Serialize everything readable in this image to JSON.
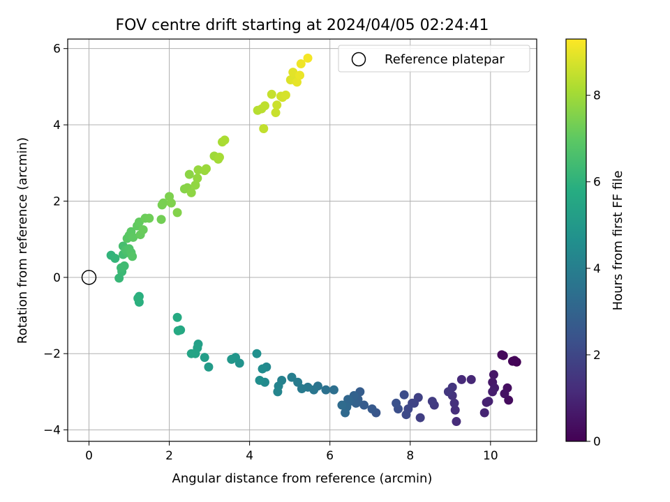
{
  "chart_data": {
    "type": "scatter",
    "title": "FOV centre drift starting at 2024/04/05 02:24:41",
    "xlabel": "Angular distance from reference (arcmin)",
    "ylabel": "Rotation from reference (arcmin)",
    "xlim": [
      -0.53,
      11.15
    ],
    "ylim": [
      -4.3,
      6.25
    ],
    "xticks": [
      0,
      2,
      4,
      6,
      8,
      10
    ],
    "yticks": [
      -4,
      -2,
      0,
      2,
      4,
      6
    ],
    "grid": true,
    "legend": {
      "placement": "top-right",
      "entries": [
        "Reference platepar"
      ]
    },
    "colorbar": {
      "label": "Hours from first FF file",
      "colormap": "viridis",
      "range": [
        0,
        9.3
      ],
      "ticks": [
        0,
        2,
        4,
        6,
        8
      ]
    },
    "reference_point": {
      "x": 0,
      "y": 0,
      "label": "Reference platepar"
    },
    "points": [
      {
        "x": 10.65,
        "y": -2.22,
        "c": 0.02
      },
      {
        "x": 10.55,
        "y": -2.2,
        "c": 0.08
      },
      {
        "x": 10.6,
        "y": -2.18,
        "c": 0.12
      },
      {
        "x": 10.32,
        "y": -2.05,
        "c": 0.18
      },
      {
        "x": 10.28,
        "y": -2.03,
        "c": 0.22
      },
      {
        "x": 10.45,
        "y": -3.22,
        "c": 0.3
      },
      {
        "x": 10.42,
        "y": -2.9,
        "c": 0.38
      },
      {
        "x": 10.35,
        "y": -3.05,
        "c": 0.45
      },
      {
        "x": 10.08,
        "y": -2.55,
        "c": 0.55
      },
      {
        "x": 10.05,
        "y": -2.75,
        "c": 0.62
      },
      {
        "x": 10.1,
        "y": -2.9,
        "c": 0.7
      },
      {
        "x": 10.05,
        "y": -3.0,
        "c": 0.78
      },
      {
        "x": 9.9,
        "y": -3.28,
        "c": 0.85
      },
      {
        "x": 9.95,
        "y": -3.25,
        "c": 0.9
      },
      {
        "x": 9.85,
        "y": -3.55,
        "c": 0.95
      },
      {
        "x": 9.52,
        "y": -2.68,
        "c": 1.05
      },
      {
        "x": 9.28,
        "y": -2.68,
        "c": 1.12
      },
      {
        "x": 9.15,
        "y": -3.78,
        "c": 1.18
      },
      {
        "x": 9.12,
        "y": -3.48,
        "c": 1.25
      },
      {
        "x": 9.1,
        "y": -3.3,
        "c": 1.32
      },
      {
        "x": 9.05,
        "y": -3.1,
        "c": 1.4
      },
      {
        "x": 9.05,
        "y": -2.88,
        "c": 1.46
      },
      {
        "x": 8.95,
        "y": -3.0,
        "c": 1.52
      },
      {
        "x": 8.6,
        "y": -3.35,
        "c": 1.6
      },
      {
        "x": 8.55,
        "y": -3.25,
        "c": 1.68
      },
      {
        "x": 8.25,
        "y": -3.68,
        "c": 1.75
      },
      {
        "x": 8.2,
        "y": -3.15,
        "c": 1.82
      },
      {
        "x": 8.1,
        "y": -3.3,
        "c": 1.9
      },
      {
        "x": 8.05,
        "y": -3.3,
        "c": 1.96
      },
      {
        "x": 7.95,
        "y": -3.45,
        "c": 2.02
      },
      {
        "x": 7.9,
        "y": -3.6,
        "c": 2.1
      },
      {
        "x": 7.85,
        "y": -3.08,
        "c": 2.18
      },
      {
        "x": 7.7,
        "y": -3.45,
        "c": 2.25
      },
      {
        "x": 7.65,
        "y": -3.3,
        "c": 2.32
      },
      {
        "x": 7.15,
        "y": -3.55,
        "c": 2.5
      },
      {
        "x": 7.05,
        "y": -3.45,
        "c": 2.6
      },
      {
        "x": 6.85,
        "y": -3.35,
        "c": 2.68
      },
      {
        "x": 6.75,
        "y": -3.0,
        "c": 2.75
      },
      {
        "x": 6.7,
        "y": -3.2,
        "c": 2.82
      },
      {
        "x": 6.65,
        "y": -3.3,
        "c": 2.9
      },
      {
        "x": 6.6,
        "y": -3.1,
        "c": 2.96
      },
      {
        "x": 6.5,
        "y": -3.25,
        "c": 3.02
      },
      {
        "x": 6.45,
        "y": -3.2,
        "c": 3.08
      },
      {
        "x": 6.42,
        "y": -3.4,
        "c": 3.15
      },
      {
        "x": 6.38,
        "y": -3.55,
        "c": 3.2
      },
      {
        "x": 6.3,
        "y": -3.35,
        "c": 3.28
      },
      {
        "x": 6.1,
        "y": -2.95,
        "c": 3.4
      },
      {
        "x": 5.9,
        "y": -2.95,
        "c": 3.5
      },
      {
        "x": 5.7,
        "y": -2.85,
        "c": 3.6
      },
      {
        "x": 5.6,
        "y": -2.95,
        "c": 3.68
      },
      {
        "x": 5.45,
        "y": -2.88,
        "c": 3.75
      },
      {
        "x": 5.3,
        "y": -2.92,
        "c": 3.82
      },
      {
        "x": 5.2,
        "y": -2.75,
        "c": 3.9
      },
      {
        "x": 5.05,
        "y": -2.62,
        "c": 3.98
      },
      {
        "x": 4.8,
        "y": -2.7,
        "c": 4.1
      },
      {
        "x": 4.72,
        "y": -2.85,
        "c": 4.18
      },
      {
        "x": 4.7,
        "y": -3.0,
        "c": 4.25
      },
      {
        "x": 4.42,
        "y": -2.35,
        "c": 4.35
      },
      {
        "x": 4.38,
        "y": -2.75,
        "c": 4.42
      },
      {
        "x": 4.32,
        "y": -2.4,
        "c": 4.5
      },
      {
        "x": 4.25,
        "y": -2.7,
        "c": 4.58
      },
      {
        "x": 4.18,
        "y": -2.0,
        "c": 4.66
      },
      {
        "x": 3.75,
        "y": -2.25,
        "c": 4.78
      },
      {
        "x": 3.65,
        "y": -2.1,
        "c": 4.86
      },
      {
        "x": 3.55,
        "y": -2.15,
        "c": 4.93
      },
      {
        "x": 2.98,
        "y": -2.35,
        "c": 5.1
      },
      {
        "x": 2.88,
        "y": -2.1,
        "c": 5.18
      },
      {
        "x": 2.72,
        "y": -1.75,
        "c": 5.26
      },
      {
        "x": 2.7,
        "y": -1.85,
        "c": 5.32
      },
      {
        "x": 2.65,
        "y": -2.0,
        "c": 5.4
      },
      {
        "x": 2.55,
        "y": -2.0,
        "c": 5.46
      },
      {
        "x": 2.28,
        "y": -1.38,
        "c": 5.58
      },
      {
        "x": 2.22,
        "y": -1.4,
        "c": 5.64
      },
      {
        "x": 2.2,
        "y": -1.05,
        "c": 5.7
      },
      {
        "x": 1.25,
        "y": -0.5,
        "c": 5.85
      },
      {
        "x": 1.25,
        "y": -0.65,
        "c": 5.9
      },
      {
        "x": 1.22,
        "y": -0.55,
        "c": 5.95
      },
      {
        "x": 0.55,
        "y": 0.58,
        "c": 6.05
      },
      {
        "x": 0.65,
        "y": 0.5,
        "c": 6.12
      },
      {
        "x": 0.75,
        "y": -0.02,
        "c": 6.2
      },
      {
        "x": 0.82,
        "y": 0.15,
        "c": 6.26
      },
      {
        "x": 0.8,
        "y": 0.25,
        "c": 6.32
      },
      {
        "x": 0.88,
        "y": 0.3,
        "c": 6.38
      },
      {
        "x": 0.85,
        "y": 0.6,
        "c": 6.45
      },
      {
        "x": 0.85,
        "y": 0.82,
        "c": 6.52
      },
      {
        "x": 0.95,
        "y": 0.65,
        "c": 6.58
      },
      {
        "x": 0.92,
        "y": 0.72,
        "c": 6.64
      },
      {
        "x": 1.0,
        "y": 0.75,
        "c": 6.7
      },
      {
        "x": 1.05,
        "y": 0.65,
        "c": 6.76
      },
      {
        "x": 1.08,
        "y": 0.55,
        "c": 6.82
      },
      {
        "x": 0.95,
        "y": 1.02,
        "c": 6.88
      },
      {
        "x": 1.0,
        "y": 1.1,
        "c": 6.92
      },
      {
        "x": 1.05,
        "y": 1.2,
        "c": 6.96
      },
      {
        "x": 1.1,
        "y": 1.05,
        "c": 7.0
      },
      {
        "x": 1.2,
        "y": 1.35,
        "c": 7.04
      },
      {
        "x": 1.25,
        "y": 1.45,
        "c": 7.08
      },
      {
        "x": 1.28,
        "y": 1.12,
        "c": 7.12
      },
      {
        "x": 1.35,
        "y": 1.25,
        "c": 7.16
      },
      {
        "x": 1.4,
        "y": 1.55,
        "c": 7.2
      },
      {
        "x": 1.5,
        "y": 1.55,
        "c": 7.24
      },
      {
        "x": 1.8,
        "y": 1.52,
        "c": 7.3
      },
      {
        "x": 1.82,
        "y": 1.9,
        "c": 7.36
      },
      {
        "x": 1.85,
        "y": 1.95,
        "c": 7.4
      },
      {
        "x": 2.0,
        "y": 2.12,
        "c": 7.46
      },
      {
        "x": 2.05,
        "y": 1.95,
        "c": 7.5
      },
      {
        "x": 2.2,
        "y": 1.7,
        "c": 7.55
      },
      {
        "x": 2.38,
        "y": 2.32,
        "c": 7.6
      },
      {
        "x": 2.45,
        "y": 2.35,
        "c": 7.64
      },
      {
        "x": 2.5,
        "y": 2.7,
        "c": 7.68
      },
      {
        "x": 2.55,
        "y": 2.22,
        "c": 7.72
      },
      {
        "x": 2.65,
        "y": 2.42,
        "c": 7.76
      },
      {
        "x": 2.7,
        "y": 2.6,
        "c": 7.8
      },
      {
        "x": 2.72,
        "y": 2.82,
        "c": 7.84
      },
      {
        "x": 2.88,
        "y": 2.8,
        "c": 7.88
      },
      {
        "x": 2.92,
        "y": 2.85,
        "c": 7.92
      },
      {
        "x": 3.12,
        "y": 3.18,
        "c": 7.98
      },
      {
        "x": 3.22,
        "y": 3.1,
        "c": 8.02
      },
      {
        "x": 3.25,
        "y": 3.15,
        "c": 8.06
      },
      {
        "x": 3.32,
        "y": 3.55,
        "c": 8.1
      },
      {
        "x": 3.38,
        "y": 3.6,
        "c": 8.14
      },
      {
        "x": 4.2,
        "y": 4.38,
        "c": 8.3
      },
      {
        "x": 4.3,
        "y": 4.42,
        "c": 8.36
      },
      {
        "x": 4.38,
        "y": 4.5,
        "c": 8.42
      },
      {
        "x": 4.35,
        "y": 3.9,
        "c": 8.46
      },
      {
        "x": 4.55,
        "y": 4.8,
        "c": 8.52
      },
      {
        "x": 4.65,
        "y": 4.32,
        "c": 8.56
      },
      {
        "x": 4.68,
        "y": 4.52,
        "c": 8.6
      },
      {
        "x": 4.78,
        "y": 4.75,
        "c": 8.66
      },
      {
        "x": 4.82,
        "y": 4.72,
        "c": 8.7
      },
      {
        "x": 4.9,
        "y": 4.78,
        "c": 8.74
      },
      {
        "x": 5.02,
        "y": 5.18,
        "c": 8.82
      },
      {
        "x": 5.1,
        "y": 5.18,
        "c": 8.88
      },
      {
        "x": 5.08,
        "y": 5.38,
        "c": 8.92
      },
      {
        "x": 5.18,
        "y": 5.12,
        "c": 8.98
      },
      {
        "x": 5.25,
        "y": 5.3,
        "c": 9.04
      },
      {
        "x": 5.28,
        "y": 5.6,
        "c": 9.1
      },
      {
        "x": 5.45,
        "y": 5.75,
        "c": 9.18
      }
    ]
  }
}
